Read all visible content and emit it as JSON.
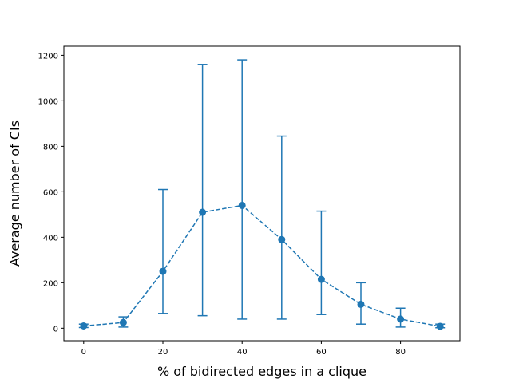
{
  "chart_data": {
    "type": "line",
    "title": "",
    "xlabel": "% of bidirected edges in a clique",
    "ylabel": "Average number of CIs",
    "xlim": [
      -5,
      95
    ],
    "ylim": [
      -55,
      1240
    ],
    "xticks": [
      0,
      20,
      40,
      60,
      80
    ],
    "yticks": [
      0,
      200,
      400,
      600,
      800,
      1000,
      1200
    ],
    "grid": false,
    "series": [
      {
        "color": "#1f77b4",
        "line_style": "dashed",
        "marker": "circle",
        "x": [
          0,
          10,
          20,
          30,
          40,
          50,
          60,
          70,
          80,
          90
        ],
        "y": [
          10,
          25,
          250,
          510,
          540,
          390,
          215,
          105,
          40,
          8
        ],
        "err_low": [
          3,
          5,
          65,
          55,
          40,
          40,
          60,
          18,
          5,
          2
        ],
        "err_high": [
          18,
          50,
          610,
          1160,
          1180,
          845,
          515,
          200,
          88,
          18
        ]
      }
    ]
  }
}
